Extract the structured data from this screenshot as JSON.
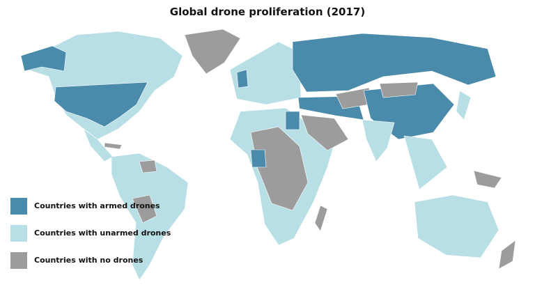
{
  "title": "Global drone proliferation (2017)",
  "colors": {
    "armed": "#4a8aab",
    "unarmed": "#b9dfe6",
    "none": "#9c9c9c"
  },
  "legend": [
    {
      "key": "armed",
      "label": "Countries with armed drones"
    },
    {
      "key": "unarmed",
      "label": "Countries with unarmed drones"
    },
    {
      "key": "none",
      "label": "Countries with no drones"
    }
  ]
}
